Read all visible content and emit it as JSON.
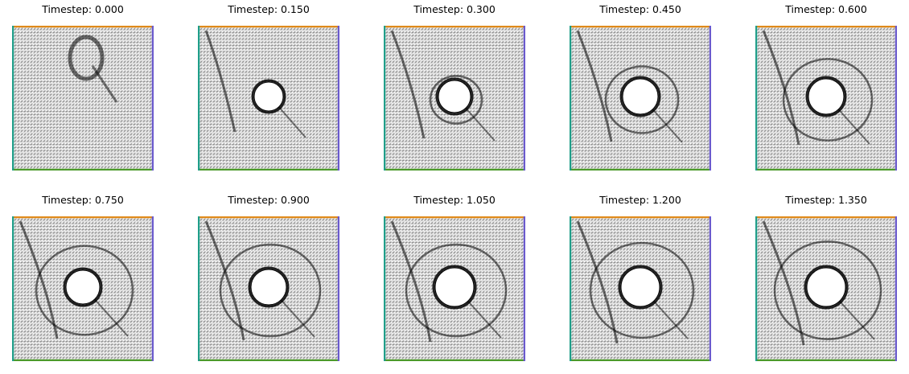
{
  "panels": [
    {
      "title": "Timestep: 0.000"
    },
    {
      "title": "Timestep: 0.150"
    },
    {
      "title": "Timestep: 0.300"
    },
    {
      "title": "Timestep: 0.450"
    },
    {
      "title": "Timestep: 0.600"
    },
    {
      "title": "Timestep: 0.750"
    },
    {
      "title": "Timestep: 0.900"
    },
    {
      "title": "Timestep: 1.050"
    },
    {
      "title": "Timestep: 1.200"
    },
    {
      "title": "Timestep: 1.350"
    }
  ],
  "colors": {
    "mesh_line": "#000000",
    "boundary_top": "#e08a1a",
    "boundary_bottom": "#4c9a2a",
    "boundary_left": "#1f9e89",
    "boundary_right": "#6a5acd",
    "background": "#ffffff"
  }
}
